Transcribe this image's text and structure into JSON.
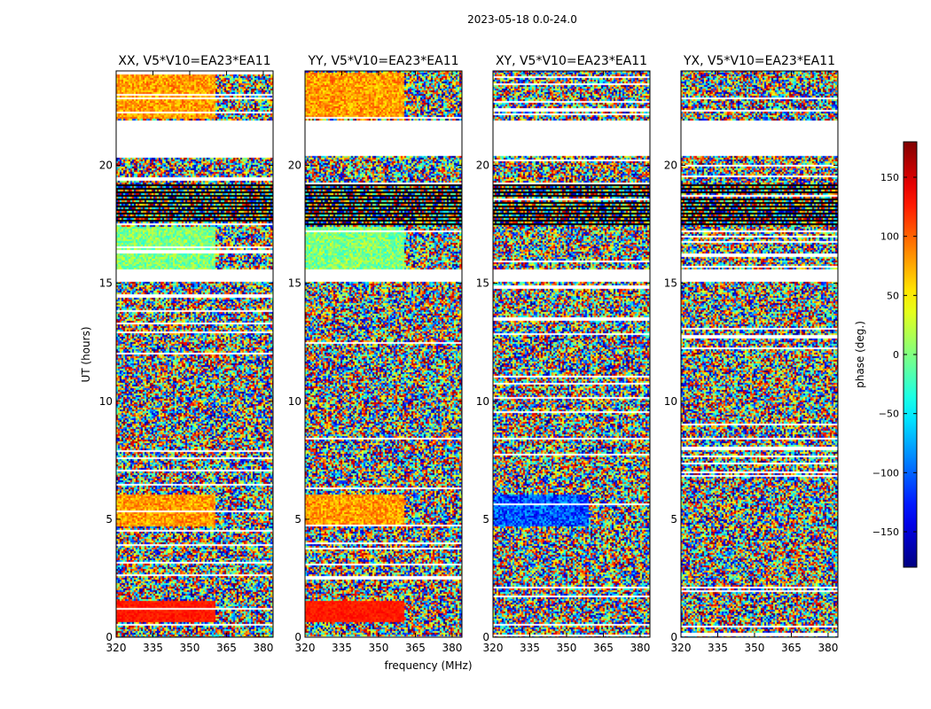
{
  "figure": {
    "suptitle": "2023-05-18 0.0-24.0",
    "xlabel": "frequency (MHz)",
    "ylabel": "UT (hours)",
    "colorbar_label": "phase (deg.)"
  },
  "chart_data": {
    "type": "heatmap",
    "panel_titles": [
      "XX, V5*V10=EA23*EA11",
      "YY, V5*V10=EA23*EA11",
      "XY, V5*V10=EA23*EA11",
      "YX, V5*V10=EA23*EA11"
    ],
    "x_ticks": [
      320,
      335,
      350,
      365,
      380
    ],
    "y_ticks": [
      0,
      5,
      10,
      15,
      20
    ],
    "xlim": [
      320,
      384
    ],
    "ylim": [
      0,
      24
    ],
    "colormap": "jet",
    "color_range": [
      -180,
      180
    ],
    "colorbar_ticks": [
      150,
      100,
      50,
      0,
      -50,
      -100,
      -150
    ],
    "colorbar_tick_labels": [
      "150",
      "100",
      "50",
      "0",
      "−50",
      "−100",
      "−150"
    ],
    "flagged_ut_ranges_hours": [
      [
        20.4,
        21.9
      ],
      [
        15.1,
        15.6
      ]
    ],
    "blank_ut_ranges_hours_xy_yx": [
      [
        15.1,
        15.6
      ]
    ]
  },
  "colors": {
    "background": "#ffffff",
    "axes": "#000000",
    "flagged": "#ffffff"
  }
}
